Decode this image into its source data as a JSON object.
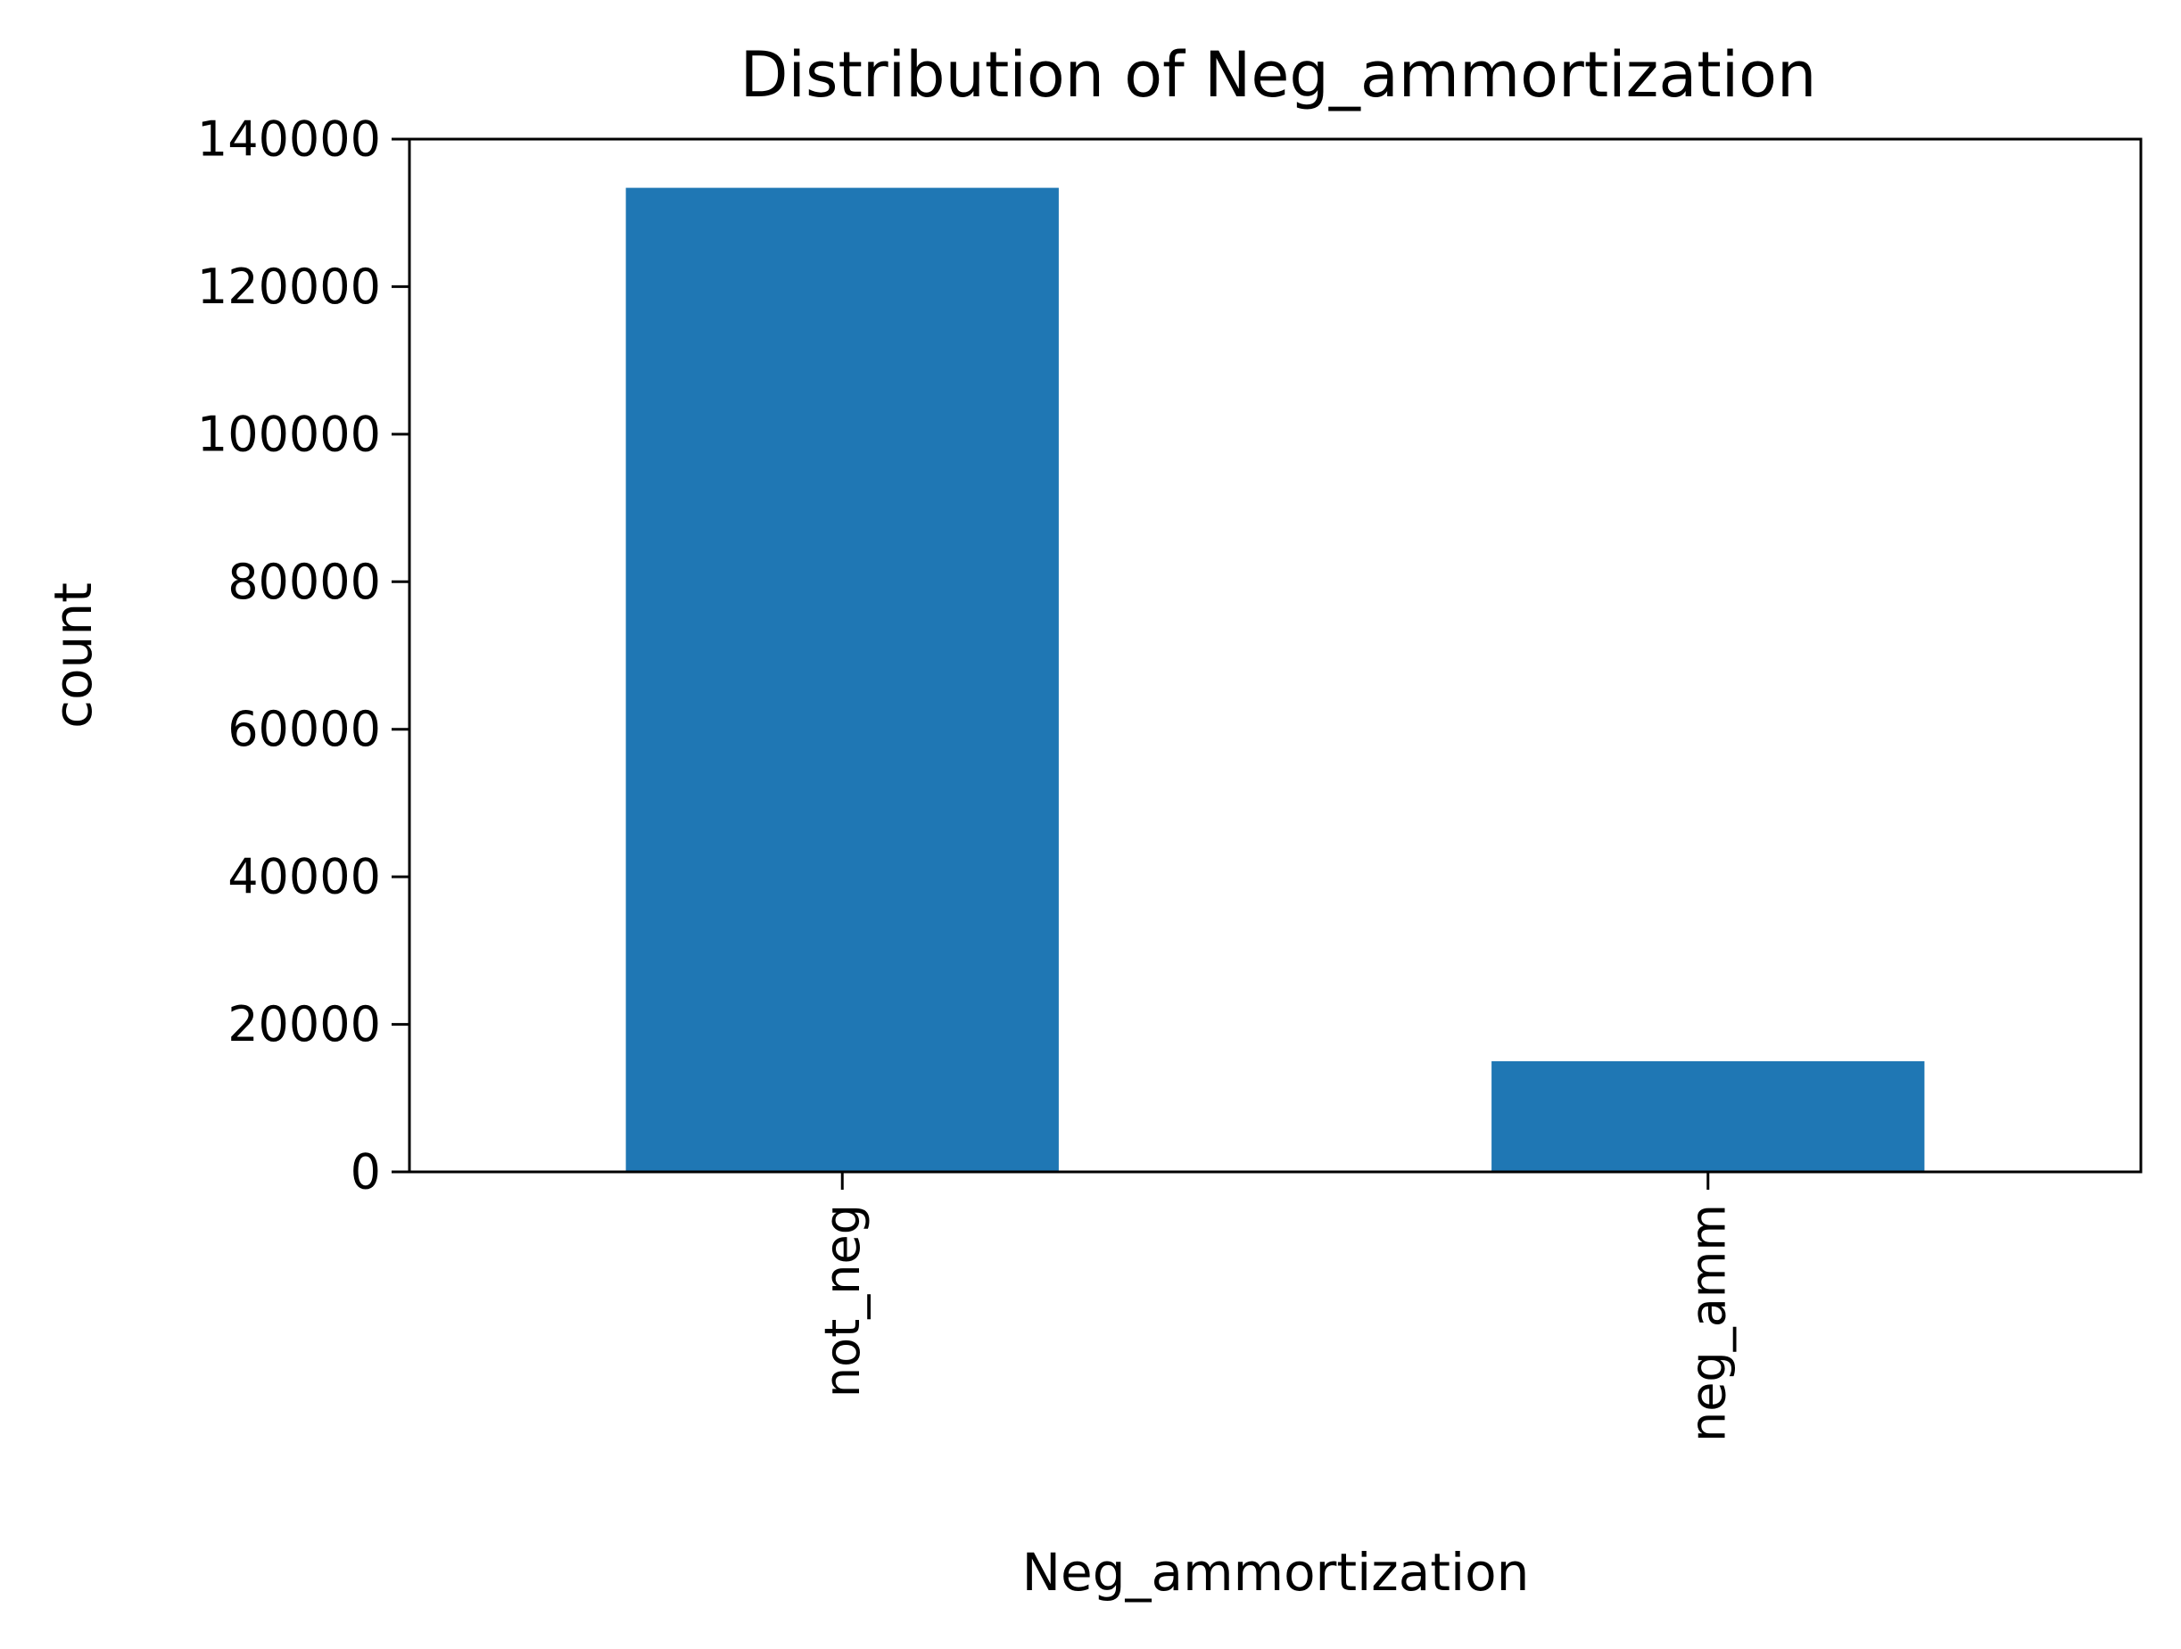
{
  "chart_data": {
    "type": "bar",
    "title": "Distribution of Neg_ammortization",
    "xlabel": "Neg_ammortization",
    "ylabel": "count",
    "categories": [
      "not_neg",
      "neg_amm"
    ],
    "values": [
      133400,
      15000
    ],
    "ylim": [
      0,
      140000
    ],
    "yticks": [
      "0",
      "20000",
      "40000",
      "60000",
      "80000",
      "100000",
      "120000",
      "140000"
    ],
    "xtick_rotation": "vertical",
    "grid": false,
    "legend": "none",
    "bar_color": "#1f77b4"
  }
}
